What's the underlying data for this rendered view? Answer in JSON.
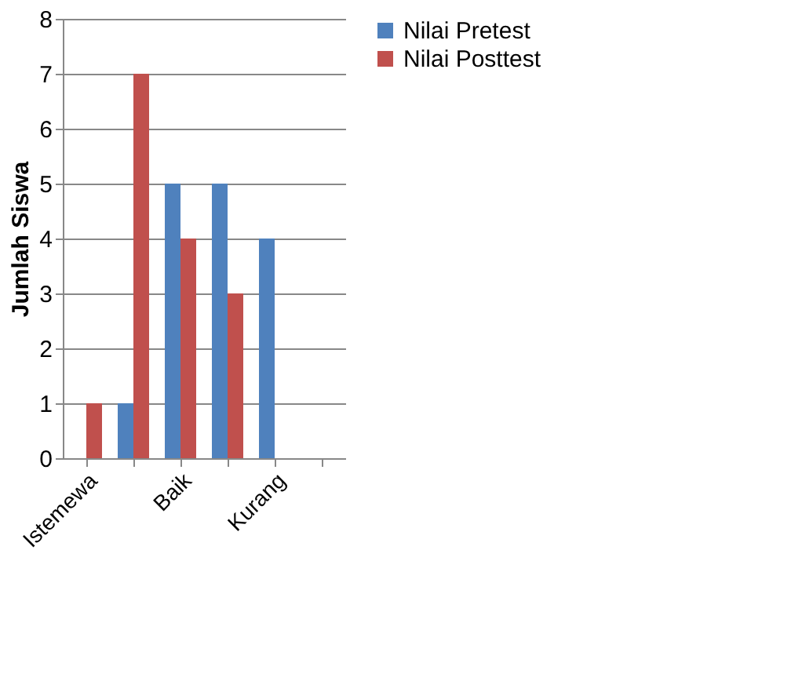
{
  "chart_data": {
    "type": "bar",
    "ylabel": "Jumlah Siswa",
    "categories": [
      "Istemewa",
      null,
      "Baik",
      null,
      "Kurang",
      null
    ],
    "series": [
      {
        "name": "Nilai Pretest",
        "color": "#4f81bd",
        "values": [
          0,
          1,
          5,
          5,
          4,
          null
        ]
      },
      {
        "name": "Nilai Posttest",
        "color": "#c0504d",
        "values": [
          1,
          7,
          4,
          3,
          0,
          null
        ]
      }
    ],
    "ylim": [
      0,
      8
    ],
    "yticks": [
      0,
      1,
      2,
      3,
      4,
      5,
      6,
      7,
      8
    ],
    "grid": "y",
    "legend": "right"
  }
}
